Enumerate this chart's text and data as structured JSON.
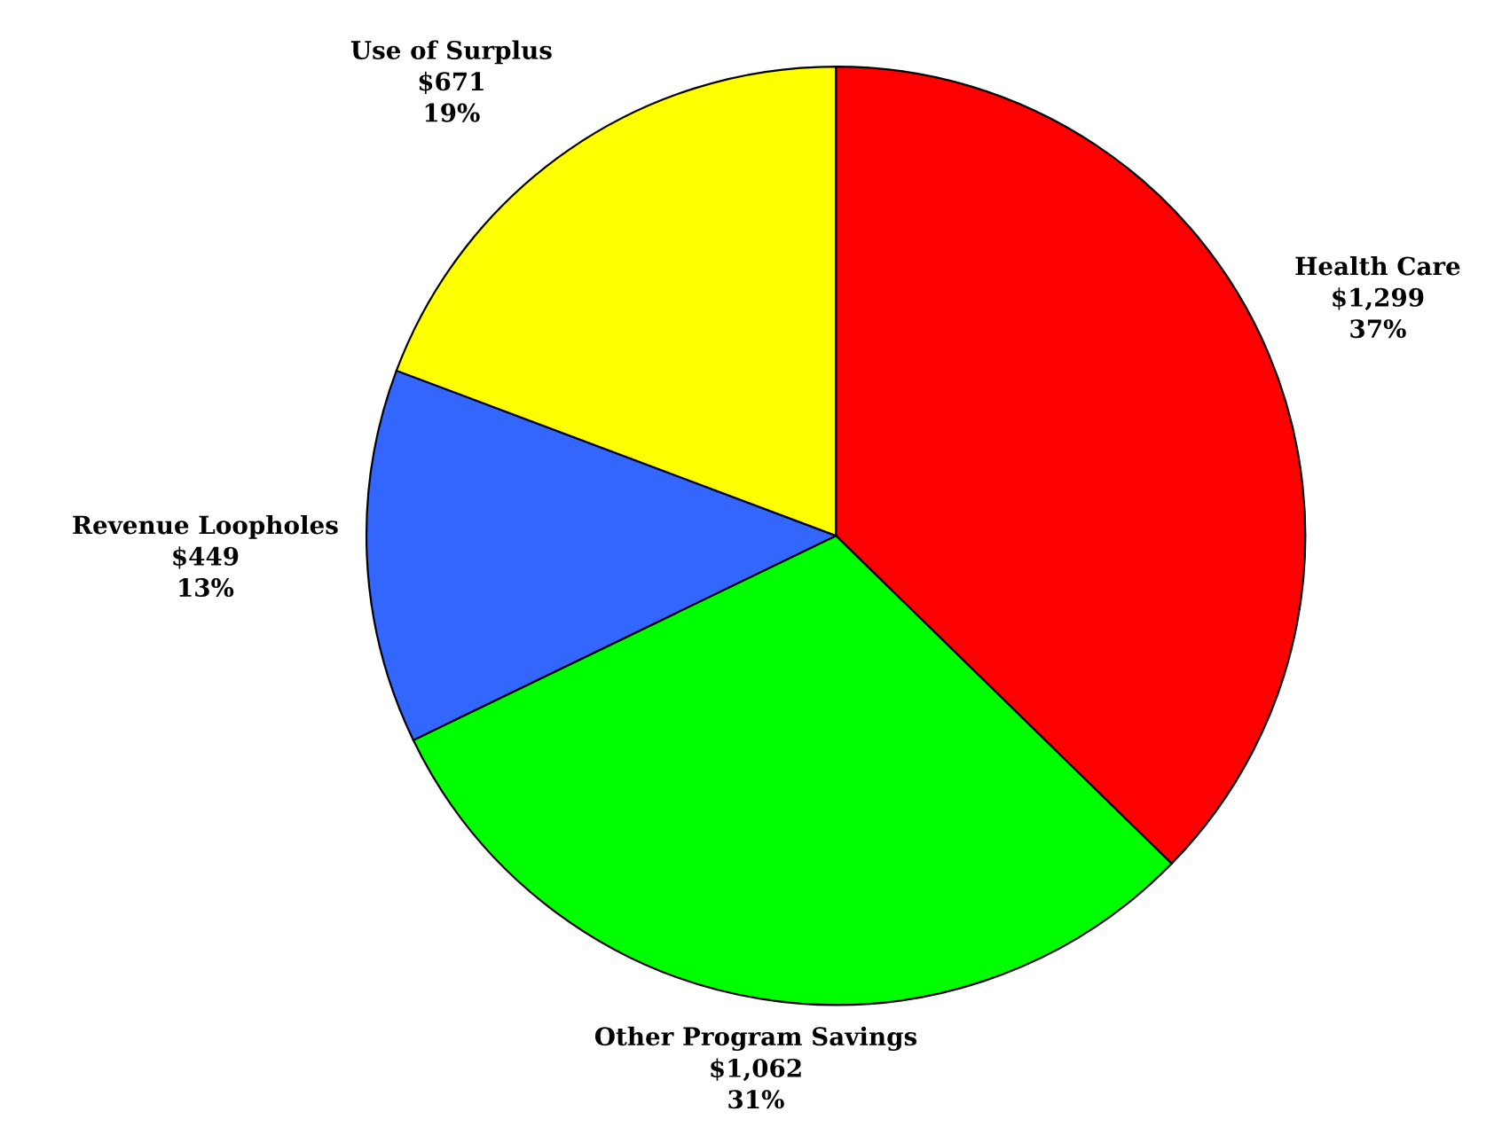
{
  "chart_data": {
    "type": "pie",
    "categories": [
      "Health Care",
      "Other Program Savings",
      "Revenue Loopholes",
      "Use of Surplus"
    ],
    "values": [
      1299,
      1062,
      449,
      671
    ],
    "value_labels": [
      "$1,299\n37%",
      "$1,062\n31%",
      "$449\n13%",
      "$671\n19%"
    ],
    "colors": [
      "#ff0000",
      "#00ff00",
      "#3366ff",
      "#ffff00"
    ],
    "legend": false
  }
}
